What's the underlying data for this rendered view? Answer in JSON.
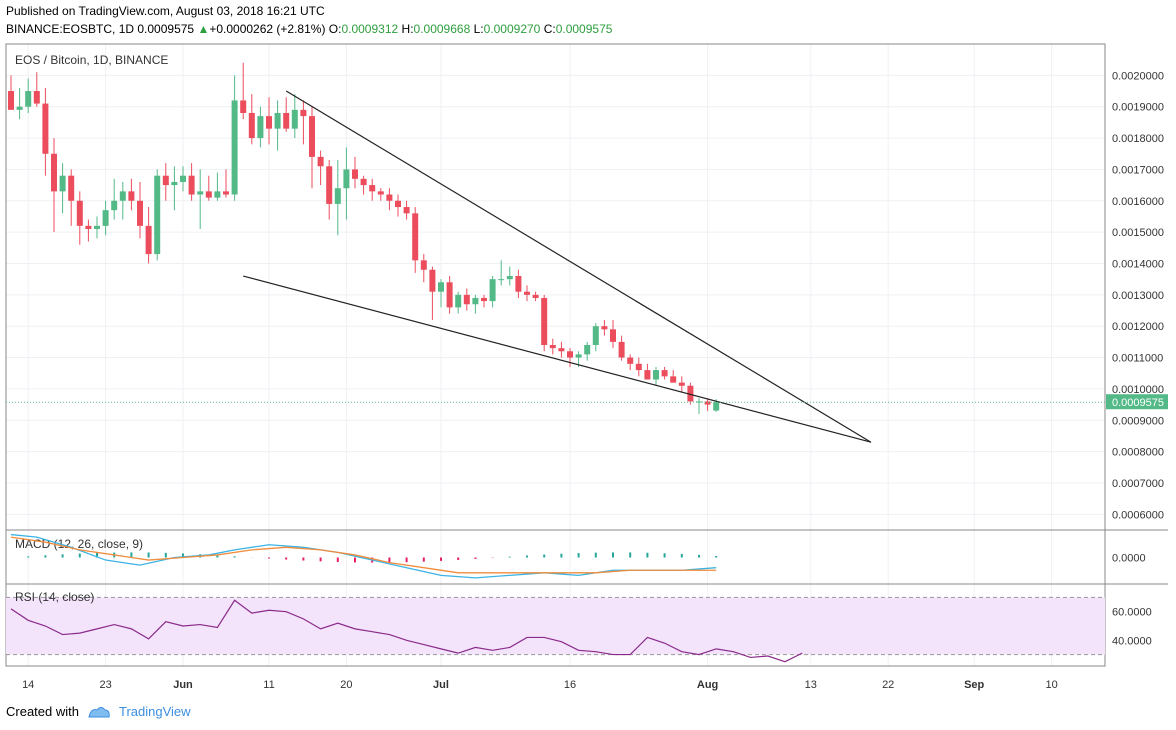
{
  "header": {
    "published": "Published on TradingView.com, August 03, 2018 16:21 UTC",
    "symbol": "BINANCE:EOSBTC, 1D",
    "last": "0.0009575",
    "change": "+0.0000262 (+2.81%)",
    "o_label": "O:",
    "o_value": "0.0009312",
    "h_label": "H:",
    "h_value": "0.0009668",
    "l_label": "L:",
    "l_value": "0.0009270",
    "c_label": "C:",
    "c_value": "0.0009575"
  },
  "footer": {
    "created_with": "Created with",
    "brand": "TradingView"
  },
  "colors": {
    "up": "#53b987",
    "down": "#eb4d5c",
    "grid": "#eef1f4",
    "macd": "#3bb3e4",
    "signal": "#f08c3c",
    "rsi": "#8a2a8a",
    "rsi_band": "#f3e3fb"
  },
  "chart_data": [
    {
      "type": "candlestick",
      "title": "EOS / Bitcoin, 1D, BINANCE",
      "ylim": [
        0.00055,
        0.0021
      ],
      "y_ticks": [
        "0.0020000",
        "0.0019000",
        "0.0018000",
        "0.0017000",
        "0.0016000",
        "0.0015000",
        "0.0014000",
        "0.0013000",
        "0.0012000",
        "0.0011000",
        "0.0010000",
        "0.0009000",
        "0.0008000",
        "0.0007000",
        "0.0006000"
      ],
      "last_price_label": "0.0009575",
      "last_price": 0.0009575,
      "x_ticks": [
        "14",
        "23",
        "Jun",
        "11",
        "20",
        "Jul",
        "16",
        "Aug",
        "13",
        "22",
        "Sep",
        "10"
      ],
      "x_tick_days": [
        2,
        11,
        20,
        30,
        39,
        50,
        65,
        81,
        93,
        102,
        112,
        121
      ],
      "trendlines": [
        {
          "from": [
            32,
            0.00195
          ],
          "to": [
            100,
            0.00083
          ]
        },
        {
          "from": [
            27,
            0.00136
          ],
          "to": [
            100,
            0.00083
          ]
        }
      ],
      "candles": [
        [
          0,
          0.00195,
          0.002,
          0.0019,
          0.00189
        ],
        [
          1,
          0.00189,
          0.00196,
          0.00186,
          0.0019
        ],
        [
          2,
          0.0019,
          0.00199,
          0.00188,
          0.00195
        ],
        [
          3,
          0.00195,
          0.00201,
          0.0019,
          0.00191
        ],
        [
          4,
          0.00191,
          0.00196,
          0.00168,
          0.00175
        ],
        [
          5,
          0.00175,
          0.0018,
          0.0015,
          0.00163
        ],
        [
          6,
          0.00163,
          0.00172,
          0.00156,
          0.00168
        ],
        [
          7,
          0.00168,
          0.0017,
          0.00152,
          0.0016
        ],
        [
          8,
          0.0016,
          0.00163,
          0.00146,
          0.00152
        ],
        [
          9,
          0.00152,
          0.00154,
          0.00147,
          0.00151
        ],
        [
          10,
          0.00151,
          0.00155,
          0.00148,
          0.00152
        ],
        [
          11,
          0.00152,
          0.0016,
          0.00149,
          0.00157
        ],
        [
          12,
          0.00157,
          0.00167,
          0.00154,
          0.0016
        ],
        [
          13,
          0.0016,
          0.00166,
          0.00154,
          0.00163
        ],
        [
          14,
          0.00163,
          0.00167,
          0.00157,
          0.0016
        ],
        [
          15,
          0.0016,
          0.00166,
          0.00148,
          0.00152
        ],
        [
          16,
          0.00152,
          0.00158,
          0.0014,
          0.00143
        ],
        [
          17,
          0.00143,
          0.0017,
          0.00141,
          0.00168
        ],
        [
          18,
          0.00168,
          0.00172,
          0.0016,
          0.00165
        ],
        [
          19,
          0.00165,
          0.00171,
          0.00157,
          0.00166
        ],
        [
          20,
          0.00166,
          0.00171,
          0.00163,
          0.00168
        ],
        [
          21,
          0.00168,
          0.00172,
          0.0016,
          0.00162
        ],
        [
          22,
          0.00162,
          0.0017,
          0.00151,
          0.00163
        ],
        [
          23,
          0.00163,
          0.00168,
          0.0016,
          0.00161
        ],
        [
          24,
          0.00161,
          0.00169,
          0.0016,
          0.00163
        ],
        [
          25,
          0.00163,
          0.0017,
          0.00161,
          0.00162
        ],
        [
          26,
          0.00162,
          0.002,
          0.0016,
          0.00192
        ],
        [
          27,
          0.00192,
          0.00204,
          0.00186,
          0.00188
        ],
        [
          28,
          0.00188,
          0.00194,
          0.00178,
          0.0018
        ],
        [
          29,
          0.0018,
          0.0019,
          0.00177,
          0.00187
        ],
        [
          30,
          0.00187,
          0.00193,
          0.00178,
          0.00183
        ],
        [
          31,
          0.00183,
          0.00192,
          0.00176,
          0.00188
        ],
        [
          32,
          0.00188,
          0.00193,
          0.00182,
          0.00183
        ],
        [
          33,
          0.00183,
          0.00194,
          0.0018,
          0.00189
        ],
        [
          34,
          0.00189,
          0.00192,
          0.00178,
          0.00187
        ],
        [
          35,
          0.00187,
          0.0019,
          0.00164,
          0.00174
        ],
        [
          36,
          0.00174,
          0.00176,
          0.00165,
          0.00171
        ],
        [
          37,
          0.00171,
          0.00173,
          0.00154,
          0.00159
        ],
        [
          38,
          0.00159,
          0.00173,
          0.00149,
          0.00164
        ],
        [
          39,
          0.00164,
          0.00177,
          0.00154,
          0.0017
        ],
        [
          40,
          0.0017,
          0.00174,
          0.00164,
          0.00167
        ],
        [
          41,
          0.00167,
          0.00168,
          0.00162,
          0.00165
        ],
        [
          42,
          0.00165,
          0.00167,
          0.0016,
          0.00163
        ],
        [
          43,
          0.00163,
          0.00164,
          0.0016,
          0.00162
        ],
        [
          44,
          0.00162,
          0.00164,
          0.00157,
          0.0016
        ],
        [
          45,
          0.0016,
          0.00162,
          0.00155,
          0.00158
        ],
        [
          46,
          0.00158,
          0.0016,
          0.00154,
          0.00156
        ],
        [
          47,
          0.00156,
          0.00158,
          0.00137,
          0.00141
        ],
        [
          48,
          0.00141,
          0.00143,
          0.00134,
          0.00138
        ],
        [
          49,
          0.00138,
          0.00139,
          0.00122,
          0.00131
        ],
        [
          50,
          0.00131,
          0.00135,
          0.00126,
          0.00134
        ],
        [
          51,
          0.00134,
          0.00136,
          0.00124,
          0.00126
        ],
        [
          52,
          0.00126,
          0.00131,
          0.00124,
          0.0013
        ],
        [
          53,
          0.0013,
          0.00132,
          0.00125,
          0.00127
        ],
        [
          54,
          0.00127,
          0.0013,
          0.00124,
          0.00129
        ],
        [
          55,
          0.00129,
          0.0013,
          0.00126,
          0.00128
        ],
        [
          56,
          0.00128,
          0.00136,
          0.00126,
          0.00135
        ],
        [
          57,
          0.00135,
          0.00141,
          0.00133,
          0.00135
        ],
        [
          58,
          0.00135,
          0.00139,
          0.00133,
          0.00136
        ],
        [
          59,
          0.00136,
          0.00138,
          0.00129,
          0.00131
        ],
        [
          60,
          0.00131,
          0.00133,
          0.00128,
          0.0013
        ],
        [
          61,
          0.0013,
          0.00131,
          0.00128,
          0.00129
        ],
        [
          62,
          0.00129,
          0.0013,
          0.00112,
          0.00114
        ],
        [
          63,
          0.00114,
          0.00116,
          0.00111,
          0.00113
        ],
        [
          64,
          0.00113,
          0.00115,
          0.0011,
          0.00112
        ],
        [
          65,
          0.00112,
          0.00113,
          0.00107,
          0.0011
        ],
        [
          66,
          0.0011,
          0.00112,
          0.00107,
          0.00111
        ],
        [
          67,
          0.00111,
          0.00115,
          0.00109,
          0.00114
        ],
        [
          68,
          0.00114,
          0.00121,
          0.00112,
          0.0012
        ],
        [
          69,
          0.0012,
          0.00122,
          0.00117,
          0.00119
        ],
        [
          70,
          0.00119,
          0.00122,
          0.00113,
          0.00115
        ],
        [
          71,
          0.00115,
          0.00117,
          0.00109,
          0.0011
        ],
        [
          72,
          0.0011,
          0.00111,
          0.00106,
          0.00108
        ],
        [
          73,
          0.00108,
          0.0011,
          0.00104,
          0.00106
        ],
        [
          74,
          0.00106,
          0.00108,
          0.00103,
          0.00103
        ],
        [
          75,
          0.00103,
          0.00107,
          0.00101,
          0.00106
        ],
        [
          76,
          0.00106,
          0.00107,
          0.00103,
          0.00104
        ],
        [
          77,
          0.00104,
          0.00106,
          0.00102,
          0.00102
        ],
        [
          78,
          0.00102,
          0.00104,
          0.00099,
          0.00101
        ],
        [
          79,
          0.00101,
          0.00102,
          0.00095,
          0.00096
        ],
        [
          80,
          0.00096,
          0.00097,
          0.00092,
          0.00096
        ],
        [
          81,
          0.00096,
          0.00097,
          0.00093,
          0.00095
        ],
        [
          82,
          0.000931,
          0.000967,
          0.000927,
          0.0009575
        ]
      ]
    },
    {
      "type": "line",
      "title": "MACD (12, 26, close, 9)",
      "y_tick": "0.0000",
      "ylim": [
        -0.0001,
        0.0001
      ],
      "macd": [
        [
          0,
          9e-05
        ],
        [
          3,
          8e-05
        ],
        [
          7,
          4e-05
        ],
        [
          11,
          -1e-05
        ],
        [
          15,
          -3e-05
        ],
        [
          19,
          0.0
        ],
        [
          23,
          1e-05
        ],
        [
          26,
          3e-05
        ],
        [
          30,
          5e-05
        ],
        [
          34,
          4e-05
        ],
        [
          38,
          2e-05
        ],
        [
          42,
          -1e-05
        ],
        [
          46,
          -4e-05
        ],
        [
          50,
          -7e-05
        ],
        [
          54,
          -8e-05
        ],
        [
          58,
          -7e-05
        ],
        [
          62,
          -6e-05
        ],
        [
          66,
          -7e-05
        ],
        [
          70,
          -5e-05
        ],
        [
          74,
          -5e-05
        ],
        [
          78,
          -5e-05
        ],
        [
          82,
          -4e-05
        ]
      ],
      "signal": [
        [
          0,
          8e-05
        ],
        [
          4,
          6e-05
        ],
        [
          8,
          3e-05
        ],
        [
          12,
          1e-05
        ],
        [
          16,
          -1e-05
        ],
        [
          20,
          0.0
        ],
        [
          24,
          1e-05
        ],
        [
          28,
          3e-05
        ],
        [
          32,
          4e-05
        ],
        [
          36,
          3e-05
        ],
        [
          40,
          1e-05
        ],
        [
          44,
          -2e-05
        ],
        [
          48,
          -4e-05
        ],
        [
          52,
          -6e-05
        ],
        [
          56,
          -6e-05
        ],
        [
          60,
          -6e-05
        ],
        [
          64,
          -6e-05
        ],
        [
          68,
          -6e-05
        ],
        [
          72,
          -5e-05
        ],
        [
          76,
          -5e-05
        ],
        [
          82,
          -5e-05
        ]
      ]
    },
    {
      "type": "line",
      "title": "RSI (14, close)",
      "y_ticks": [
        "60.0000",
        "40.0000"
      ],
      "ylim": [
        22,
        78
      ],
      "band": [
        30,
        70
      ],
      "values": [
        [
          0,
          62
        ],
        [
          2,
          54
        ],
        [
          4,
          50
        ],
        [
          6,
          44
        ],
        [
          8,
          45
        ],
        [
          10,
          48
        ],
        [
          12,
          51
        ],
        [
          14,
          48
        ],
        [
          16,
          41
        ],
        [
          18,
          53
        ],
        [
          20,
          50
        ],
        [
          22,
          51
        ],
        [
          24,
          49
        ],
        [
          26,
          68
        ],
        [
          28,
          59
        ],
        [
          30,
          61
        ],
        [
          32,
          60
        ],
        [
          34,
          55
        ],
        [
          36,
          48
        ],
        [
          38,
          52
        ],
        [
          40,
          48
        ],
        [
          42,
          46
        ],
        [
          44,
          44
        ],
        [
          46,
          40
        ],
        [
          48,
          37
        ],
        [
          50,
          34
        ],
        [
          52,
          31
        ],
        [
          54,
          35
        ],
        [
          56,
          33
        ],
        [
          58,
          35
        ],
        [
          60,
          42
        ],
        [
          62,
          42
        ],
        [
          64,
          39
        ],
        [
          66,
          33
        ],
        [
          68,
          32
        ],
        [
          70,
          30
        ],
        [
          72,
          30
        ],
        [
          74,
          42
        ],
        [
          76,
          38
        ],
        [
          78,
          32
        ],
        [
          80,
          30
        ],
        [
          82,
          34
        ],
        [
          84,
          32
        ],
        [
          86,
          28
        ],
        [
          88,
          29
        ],
        [
          90,
          25
        ],
        [
          92,
          31
        ]
      ]
    }
  ]
}
